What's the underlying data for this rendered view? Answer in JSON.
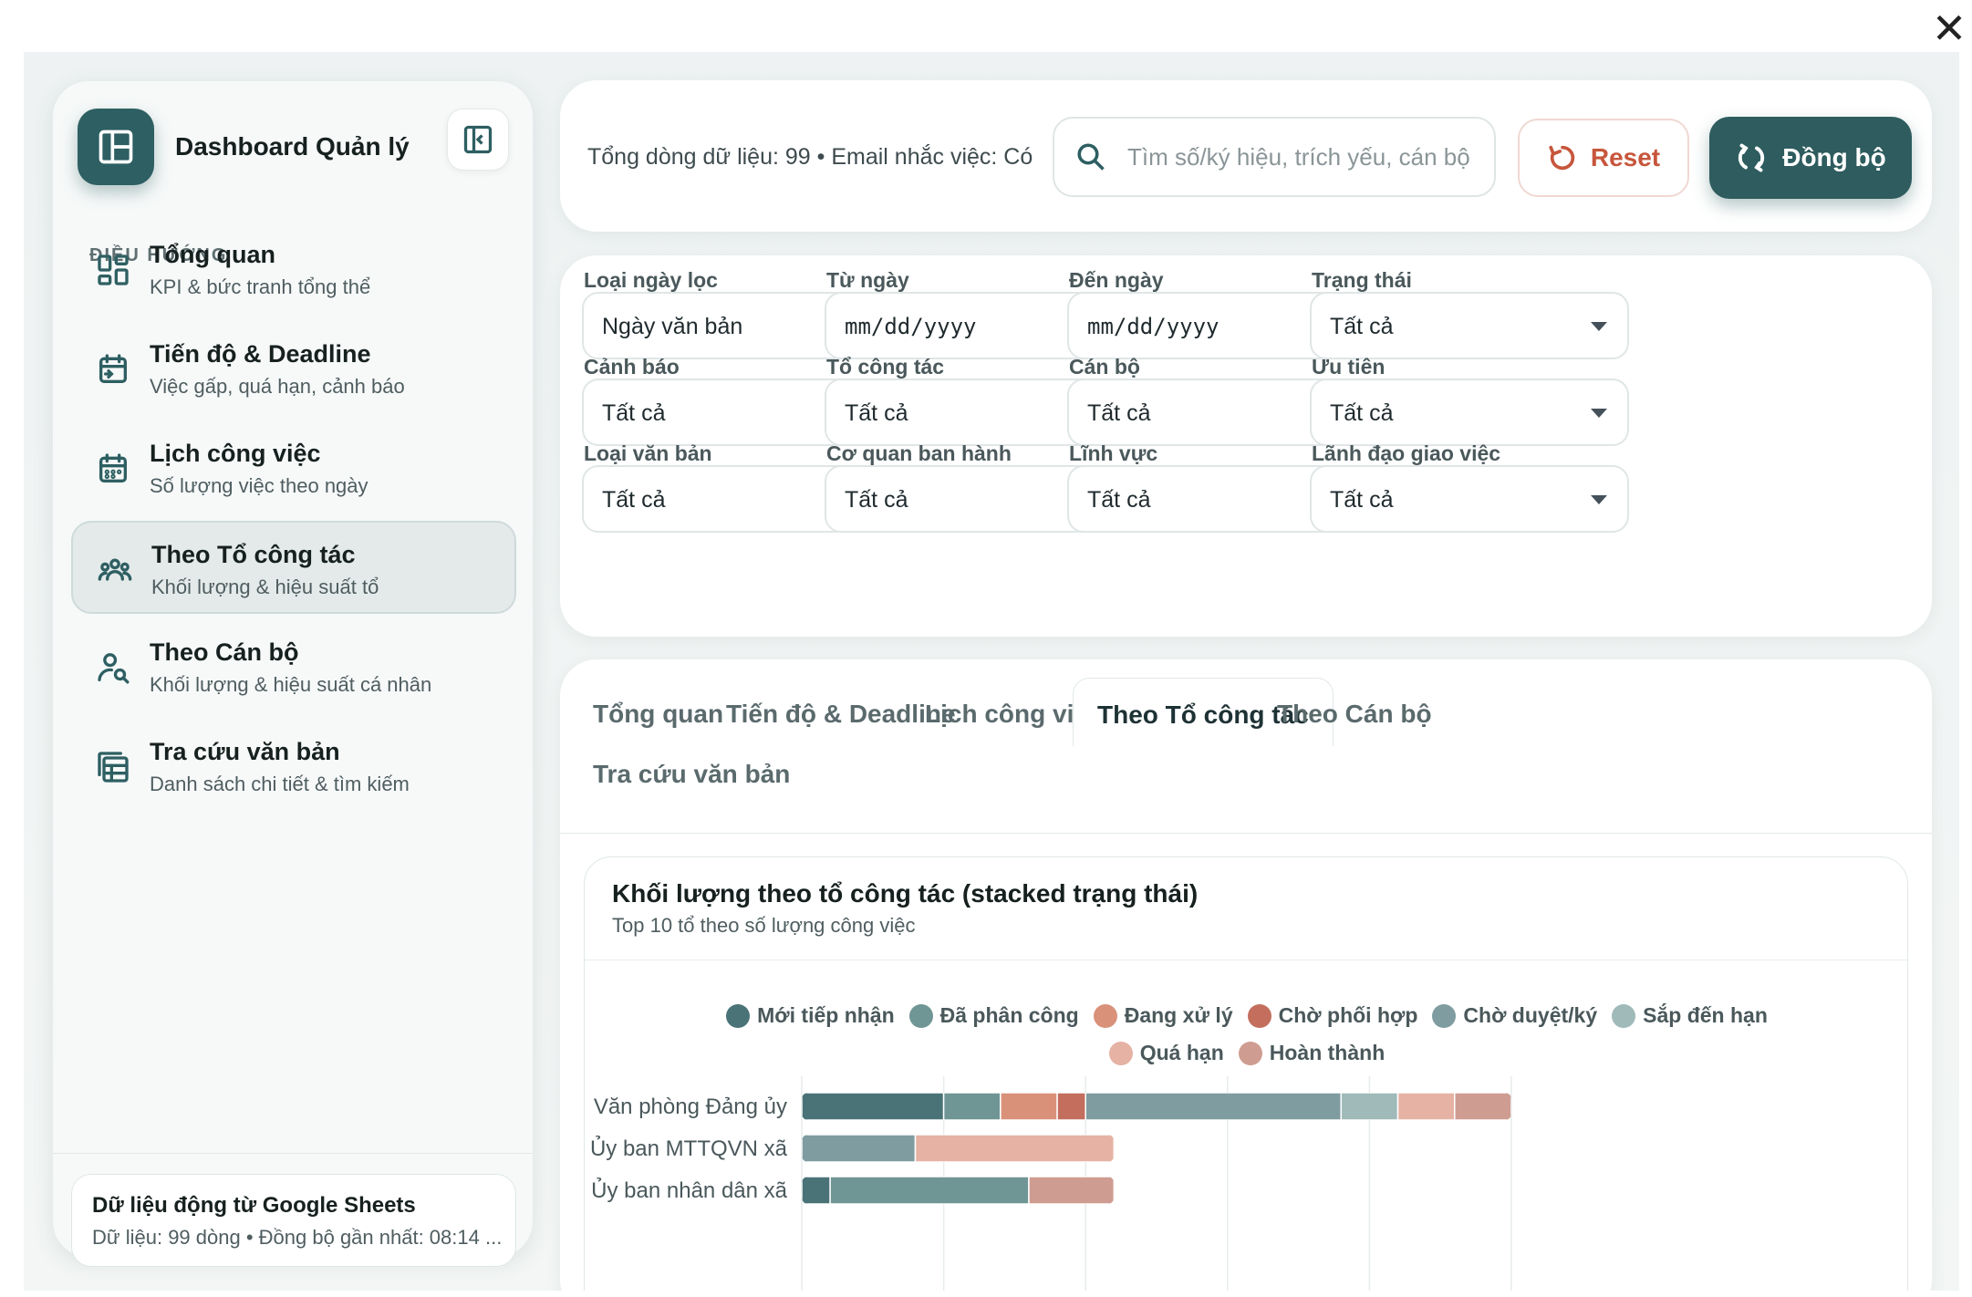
{
  "close_glyph": "✕",
  "sidebar": {
    "brand_title": "Dashboard Quản lý",
    "nav_heading": "ĐIỀU HƯỚNG",
    "items": [
      {
        "title": "Tổng quan",
        "sub": "KPI & bức tranh tổng thể",
        "icon": "grid-icon"
      },
      {
        "title": "Tiến độ & Deadline",
        "sub": "Việc gấp, quá hạn, cảnh báo",
        "icon": "calendar-arrow-icon"
      },
      {
        "title": "Lịch công việc",
        "sub": "Số lượng việc theo ngày",
        "icon": "calendar-icon"
      },
      {
        "title": "Theo Tổ công tác",
        "sub": "Khối lượng & hiệu suất tổ",
        "icon": "group-icon"
      },
      {
        "title": "Theo Cán bộ",
        "sub": "Khối lượng & hiệu suất cá nhân",
        "icon": "person-search-icon"
      },
      {
        "title": "Tra cứu văn bản",
        "sub": "Danh sách chi tiết & tìm kiếm",
        "icon": "table-icon"
      }
    ],
    "active_index": 3,
    "sync_card": {
      "title": "Dữ liệu động từ Google Sheets",
      "sub": "Dữ liệu: 99 dòng • Đồng bộ gần nhất: 08:14 ..."
    }
  },
  "topbar": {
    "meta": "Tổng dòng dữ liệu: 99 • Email nhắc việc: Có",
    "search_placeholder": "Tìm số/ký hiệu, trích yếu, cán bộ",
    "reset_label": "Reset",
    "sync_label": "Đồng bộ",
    "reset_color": "#c7563c",
    "sync_color": "#2e5c5f"
  },
  "filters": [
    {
      "label": "Loại ngày lọc",
      "value": "Ngày văn bản",
      "kind": "select"
    },
    {
      "label": "Từ ngày",
      "value": "mm/dd/yyyy",
      "kind": "date"
    },
    {
      "label": "Đến ngày",
      "value": "mm/dd/yyyy",
      "kind": "date"
    },
    {
      "label": "Trạng thái",
      "value": "Tất cả",
      "kind": "select"
    },
    {
      "label": "Cảnh báo",
      "value": "Tất cả",
      "kind": "select"
    },
    {
      "label": "Tổ công tác",
      "value": "Tất cả",
      "kind": "select"
    },
    {
      "label": "Cán bộ",
      "value": "Tất cả",
      "kind": "select"
    },
    {
      "label": "Ưu tiên",
      "value": "Tất cả",
      "kind": "select"
    },
    {
      "label": "Loại văn bản",
      "value": "Tất cả",
      "kind": "select"
    },
    {
      "label": "Cơ quan ban hành",
      "value": "Tất cả",
      "kind": "select"
    },
    {
      "label": "Lĩnh vực",
      "value": "Tất cả",
      "kind": "select"
    },
    {
      "label": "Lãnh đạo giao việc",
      "value": "Tất cả",
      "kind": "select"
    }
  ],
  "tabs": [
    "Tổng quan",
    "Tiến độ & Deadline",
    "Lịch công việc",
    "Theo Tổ công tác",
    "Theo Cán bộ",
    "Tra cứu văn bản"
  ],
  "active_tab": 3,
  "chart_card": {
    "title": "Khối lượng theo tổ công tác (stacked trạng thái)",
    "subtitle": "Top 10 tổ theo số lượng công việc"
  },
  "chart_data": {
    "type": "bar",
    "orientation": "horizontal",
    "stacked": true,
    "title": "Khối lượng theo tổ công tác (stacked trạng thái)",
    "subtitle": "Top 10 tổ theo số lượng công việc",
    "categories": [
      "Văn phòng Đảng ủy",
      "Ủy ban MTTQVN xã",
      "Ủy ban nhân dân xã"
    ],
    "legend_position": "top",
    "grid": true,
    "xlim": [
      0,
      25
    ],
    "series": [
      {
        "name": "Mới tiếp nhận",
        "color": "#4a7378",
        "values": [
          5,
          0,
          1
        ]
      },
      {
        "name": "Đã phân công",
        "color": "#6f9594",
        "values": [
          2,
          0,
          7
        ]
      },
      {
        "name": "Đang xử lý",
        "color": "#d9917a",
        "values": [
          2,
          0,
          0
        ]
      },
      {
        "name": "Chờ phối hợp",
        "color": "#c46e5e",
        "values": [
          1,
          0,
          0
        ]
      },
      {
        "name": "Chờ duyệt/ký",
        "color": "#7f9ca0",
        "values": [
          9,
          4,
          0
        ]
      },
      {
        "name": "Sắp đến hạn",
        "color": "#9fbab8",
        "values": [
          2,
          0,
          0
        ]
      },
      {
        "name": "Quá hạn",
        "color": "#e5b2a4",
        "values": [
          2,
          7,
          0
        ]
      },
      {
        "name": "Hoàn thành",
        "color": "#cf9c91",
        "values": [
          2,
          0,
          3
        ]
      }
    ]
  }
}
